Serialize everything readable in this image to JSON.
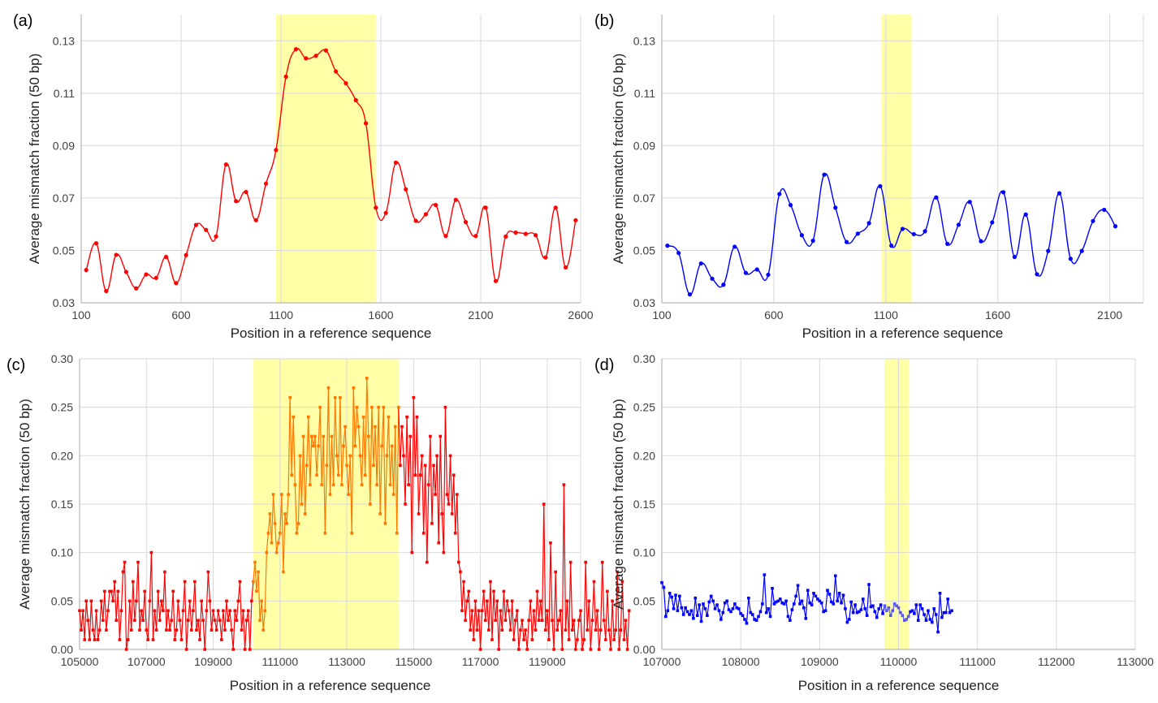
{
  "chart_data": [
    {
      "panel": "(a)",
      "type": "line",
      "xlabel": "Position in a reference sequence",
      "ylabel": "Average mismatch fraction (50 bp)",
      "xlim": [
        100,
        2600
      ],
      "ylim": [
        0.03,
        0.14
      ],
      "x_ticks": [
        100,
        600,
        1100,
        1600,
        2100,
        2600
      ],
      "y_ticks": [
        0.03,
        0.05,
        0.07,
        0.09,
        0.11,
        0.13
      ],
      "y_tick_labels": [
        "0.03",
        "0.05",
        "0.07",
        "0.09",
        "0.11",
        "0.13"
      ],
      "highlight": [
        1075,
        1575
      ],
      "color": "#ff0000",
      "smooth": true,
      "series": [
        {
          "x": [
            125,
            175,
            225,
            275,
            325,
            375,
            425,
            475,
            525,
            575,
            625,
            675,
            725,
            775,
            825,
            875,
            925,
            975,
            1025,
            1075,
            1125,
            1175,
            1225,
            1275,
            1325,
            1375,
            1425,
            1475,
            1525,
            1575,
            1625,
            1675,
            1725,
            1775,
            1825,
            1875,
            1925,
            1975,
            2025,
            2075,
            2125,
            2175,
            2225,
            2275,
            2325,
            2375,
            2425,
            2475,
            2525,
            2575
          ],
          "y": [
            0.0425,
            0.0527,
            0.0345,
            0.0483,
            0.0418,
            0.0355,
            0.0408,
            0.0395,
            0.0475,
            0.0375,
            0.0482,
            0.0597,
            0.0578,
            0.0553,
            0.0828,
            0.0688,
            0.0723,
            0.0615,
            0.0755,
            0.0883,
            0.1163,
            0.1268,
            0.1233,
            0.1243,
            0.1263,
            0.1183,
            0.1138,
            0.1073,
            0.0985,
            0.0663,
            0.0643,
            0.0835,
            0.0733,
            0.0613,
            0.0638,
            0.0673,
            0.0555,
            0.0693,
            0.0608,
            0.0555,
            0.0663,
            0.0383,
            0.0553,
            0.0568,
            0.0563,
            0.0558,
            0.0473,
            0.0663,
            0.0435,
            0.0615
          ]
        }
      ]
    },
    {
      "panel": "(b)",
      "type": "line",
      "xlabel": "Position in a reference sequence",
      "ylabel": "Average mismatch fraction (50 bp)",
      "xlim": [
        100,
        2250
      ],
      "ylim": [
        0.03,
        0.14
      ],
      "x_ticks": [
        100,
        600,
        1100,
        1600,
        2100
      ],
      "y_ticks": [
        0.03,
        0.05,
        0.07,
        0.09,
        0.11,
        0.13
      ],
      "y_tick_labels": [
        "0.03",
        "0.05",
        "0.07",
        "0.09",
        "0.11",
        "0.13"
      ],
      "highlight": [
        1080,
        1215
      ],
      "color": "#0000ff",
      "smooth": true,
      "series": [
        {
          "x": [
            125,
            175,
            225,
            275,
            325,
            375,
            425,
            475,
            525,
            575,
            625,
            675,
            725,
            775,
            825,
            875,
            925,
            975,
            1025,
            1075,
            1125,
            1175,
            1225,
            1275,
            1325,
            1375,
            1425,
            1475,
            1525,
            1575,
            1625,
            1675,
            1725,
            1775,
            1825,
            1875,
            1925,
            1975,
            2025,
            2075,
            2125
          ],
          "y": [
            0.0518,
            0.049,
            0.0332,
            0.045,
            0.0392,
            0.0369,
            0.0514,
            0.0414,
            0.0427,
            0.0407,
            0.0715,
            0.0673,
            0.0558,
            0.0537,
            0.0789,
            0.0663,
            0.0532,
            0.0564,
            0.0604,
            0.0745,
            0.0518,
            0.0582,
            0.0562,
            0.0573,
            0.0702,
            0.0525,
            0.0598,
            0.0685,
            0.0535,
            0.0607,
            0.0722,
            0.0475,
            0.0637,
            0.0409,
            0.0498,
            0.0718,
            0.0468,
            0.0498,
            0.0612,
            0.0655,
            0.0592
          ]
        }
      ]
    },
    {
      "panel": "(c)",
      "type": "line",
      "xlabel": "Position in a reference sequence",
      "ylabel": "Average mismatch fraction (50 bp)",
      "xlim": [
        105000,
        120000
      ],
      "ylim": [
        0,
        0.3
      ],
      "x_ticks": [
        105000,
        107000,
        109000,
        111000,
        113000,
        115000,
        117000,
        119000
      ],
      "y_ticks": [
        0,
        0.05,
        0.1,
        0.15,
        0.2,
        0.25,
        0.3
      ],
      "y_tick_labels": [
        "0.00",
        "0.05",
        "0.10",
        "0.15",
        "0.20",
        "0.25",
        "0.30"
      ],
      "highlight": [
        110200,
        114550
      ],
      "color": "#ff0000",
      "highlight_color": "#ff7700",
      "smooth": false,
      "x_start": 105000,
      "x_step": 50,
      "y_values": [
        0.04,
        0.02,
        0.04,
        0.01,
        0.05,
        0.03,
        0.01,
        0.05,
        0.02,
        0.01,
        0.04,
        0.01,
        0.02,
        0.05,
        0.03,
        0.06,
        0.02,
        0.04,
        0.06,
        0.06,
        0.05,
        0.07,
        0.03,
        0.06,
        0.01,
        0.04,
        0.08,
        0.09,
        0.0,
        0.01,
        0.05,
        0.02,
        0.07,
        0.03,
        0.05,
        0.09,
        0.02,
        0.04,
        0.03,
        0.06,
        0.02,
        0.01,
        0.05,
        0.1,
        0.01,
        0.04,
        0.02,
        0.06,
        0.03,
        0.05,
        0.04,
        0.08,
        0.02,
        0.04,
        0.02,
        0.03,
        0.06,
        0.01,
        0.02,
        0.05,
        0.03,
        0.01,
        0.04,
        0.07,
        0.0,
        0.03,
        0.05,
        0.02,
        0.04,
        0.07,
        0.02,
        0.03,
        0.01,
        0.05,
        0.03,
        0.0,
        0.04,
        0.08,
        0.05,
        0.02,
        0.04,
        0.03,
        0.02,
        0.04,
        0.03,
        0.01,
        0.04,
        0.02,
        0.05,
        0.03,
        0.04,
        0.02,
        0.0,
        0.04,
        0.03,
        0.05,
        0.07,
        0.02,
        0.04,
        0.0,
        0.03,
        0.04,
        0.0,
        0.05,
        0.07,
        0.09,
        0.06,
        0.08,
        0.03,
        0.05,
        0.02,
        0.04,
        0.1,
        0.12,
        0.14,
        0.11,
        0.16,
        0.13,
        0.1,
        0.11,
        0.12,
        0.16,
        0.08,
        0.14,
        0.13,
        0.16,
        0.26,
        0.18,
        0.24,
        0.17,
        0.12,
        0.13,
        0.2,
        0.15,
        0.22,
        0.14,
        0.19,
        0.24,
        0.17,
        0.22,
        0.21,
        0.22,
        0.18,
        0.21,
        0.25,
        0.17,
        0.22,
        0.12,
        0.19,
        0.27,
        0.16,
        0.22,
        0.17,
        0.26,
        0.2,
        0.18,
        0.26,
        0.17,
        0.21,
        0.23,
        0.19,
        0.16,
        0.2,
        0.12,
        0.27,
        0.21,
        0.25,
        0.23,
        0.2,
        0.17,
        0.24,
        0.18,
        0.28,
        0.22,
        0.15,
        0.25,
        0.19,
        0.23,
        0.17,
        0.25,
        0.14,
        0.21,
        0.25,
        0.13,
        0.2,
        0.24,
        0.17,
        0.21,
        0.16,
        0.23,
        0.12,
        0.25,
        0.19,
        0.23,
        0.2,
        0.15,
        0.24,
        0.17,
        0.22,
        0.1,
        0.26,
        0.18,
        0.24,
        0.14,
        0.18,
        0.2,
        0.12,
        0.19,
        0.09,
        0.17,
        0.22,
        0.13,
        0.19,
        0.16,
        0.2,
        0.11,
        0.22,
        0.14,
        0.1,
        0.25,
        0.16,
        0.15,
        0.2,
        0.14,
        0.18,
        0.12,
        0.16,
        0.09,
        0.08,
        0.04,
        0.07,
        0.03,
        0.05,
        0.06,
        0.02,
        0.04,
        0.01,
        0.05,
        0.02,
        0.04,
        0.0,
        0.04,
        0.06,
        0.03,
        0.05,
        0.02,
        0.07,
        0.01,
        0.06,
        0.03,
        0.05,
        0.0,
        0.04,
        0.02,
        0.06,
        0.03,
        0.05,
        0.04,
        0.02,
        0.05,
        0.01,
        0.03,
        0.04,
        0.0,
        0.02,
        0.03,
        0.01,
        0.02,
        0.0,
        0.03,
        0.05,
        0.01,
        0.04,
        0.02,
        0.06,
        0.03,
        0.05,
        0.03,
        0.15,
        0.02,
        0.04,
        0.01,
        0.11,
        0.03,
        0.0,
        0.08,
        0.02,
        0.03,
        0.04,
        0.0,
        0.17,
        0.02,
        0.05,
        0.01,
        0.09,
        0.02,
        0.03,
        0.0,
        0.01,
        0.03,
        0.04,
        0.0,
        0.01,
        0.09,
        0.02,
        0.05,
        0.0,
        0.03,
        0.07,
        0.02,
        0.04,
        0.0,
        0.02,
        0.09,
        0.03,
        0.01,
        0.06,
        0.02,
        0.0,
        0.05,
        0.01,
        0.02,
        0.08,
        0.0,
        0.02,
        0.07,
        0.01,
        0.03,
        0.0,
        0.04
      ]
    },
    {
      "panel": "(d)",
      "type": "line",
      "xlabel": "Position in a reference sequence",
      "ylabel": "Average mismatch fraction (50 bp)",
      "xlim": [
        107000,
        113000
      ],
      "ylim": [
        0,
        0.3
      ],
      "x_ticks": [
        107000,
        108000,
        109000,
        110000,
        111000,
        112000,
        113000
      ],
      "y_ticks": [
        0,
        0.05,
        0.1,
        0.15,
        0.2,
        0.25,
        0.3
      ],
      "y_tick_labels": [
        "0.00",
        "0.05",
        "0.10",
        "0.15",
        "0.20",
        "0.25",
        "0.30"
      ],
      "highlight": [
        109820,
        110130
      ],
      "color": "#0000ff",
      "highlight_color": "#5555ff",
      "smooth": false,
      "x_start": 107000,
      "x_step": 25,
      "y_values": [
        0.069,
        0.064,
        0.034,
        0.04,
        0.058,
        0.054,
        0.042,
        0.056,
        0.04,
        0.055,
        0.043,
        0.036,
        0.043,
        0.039,
        0.036,
        0.04,
        0.032,
        0.053,
        0.035,
        0.046,
        0.029,
        0.047,
        0.042,
        0.035,
        0.049,
        0.055,
        0.05,
        0.042,
        0.046,
        0.04,
        0.031,
        0.038,
        0.048,
        0.05,
        0.041,
        0.039,
        0.042,
        0.047,
        0.043,
        0.042,
        0.037,
        0.035,
        0.031,
        0.027,
        0.053,
        0.038,
        0.036,
        0.031,
        0.03,
        0.034,
        0.039,
        0.047,
        0.077,
        0.038,
        0.042,
        0.034,
        0.063,
        0.047,
        0.049,
        0.05,
        0.052,
        0.048,
        0.047,
        0.05,
        0.034,
        0.03,
        0.041,
        0.047,
        0.055,
        0.066,
        0.047,
        0.05,
        0.043,
        0.032,
        0.061,
        0.048,
        0.046,
        0.058,
        0.055,
        0.052,
        0.05,
        0.048,
        0.039,
        0.04,
        0.061,
        0.057,
        0.049,
        0.047,
        0.076,
        0.05,
        0.058,
        0.048,
        0.056,
        0.042,
        0.028,
        0.031,
        0.049,
        0.038,
        0.046,
        0.038,
        0.039,
        0.041,
        0.052,
        0.042,
        0.035,
        0.067,
        0.044,
        0.045,
        0.039,
        0.033,
        0.042,
        0.046,
        0.037,
        0.045,
        0.04,
        0.043,
        0.035,
        0.04,
        0.047,
        0.045,
        0.043,
        0.038,
        0.035,
        0.03,
        0.031,
        0.034,
        0.039,
        0.04,
        0.037,
        0.046,
        0.03,
        0.046,
        0.042,
        0.036,
        0.03,
        0.04,
        0.031,
        0.028,
        0.042,
        0.036,
        0.018,
        0.058,
        0.033,
        0.038,
        0.038,
        0.052,
        0.038,
        0.04
      ]
    }
  ]
}
